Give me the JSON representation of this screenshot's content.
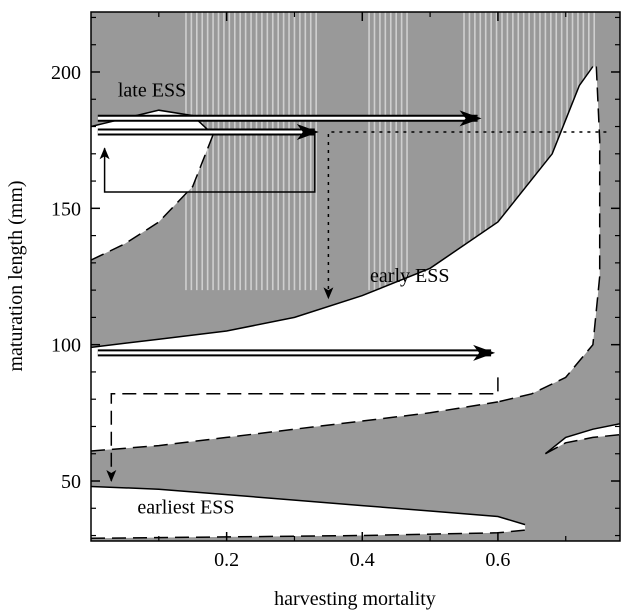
{
  "chart_data": {
    "type": "area",
    "title": "",
    "xlabel": "harvesting mortality",
    "ylabel": "maturation length (mm)",
    "xlim": [
      0,
      0.78
    ],
    "ylim": [
      28,
      222
    ],
    "x_ticks": [
      0.2,
      0.4,
      0.6
    ],
    "x_tick_labels": [
      "0.2",
      "0.4",
      "0.6"
    ],
    "y_ticks": [
      50,
      100,
      150,
      200
    ],
    "y_tick_labels": [
      "50",
      "100",
      "150",
      "200"
    ],
    "grid": false,
    "colors": {
      "background": "#999999",
      "ess_region": "#ffffff",
      "stripes": "#d9d9d9",
      "lines": "#000000"
    },
    "region_labels": [
      {
        "text": "late ESS",
        "x": 0.09,
        "y": 191
      },
      {
        "text": "early ESS",
        "x": 0.47,
        "y": 123
      },
      {
        "text": "earliest ESS",
        "x": 0.14,
        "y": 38
      }
    ],
    "boundaries": [
      {
        "name": "late-ess-upper",
        "style": "solid",
        "x": [
          0,
          0.05,
          0.1,
          0.15,
          0.18
        ],
        "y": [
          180,
          183,
          186,
          184,
          177
        ]
      },
      {
        "name": "late-ess-lower",
        "style": "dashed",
        "x": [
          0,
          0.05,
          0.1,
          0.15,
          0.18
        ],
        "y": [
          131,
          137,
          145,
          158,
          177
        ]
      },
      {
        "name": "early-ess-upper",
        "style": "solid",
        "x": [
          0,
          0.1,
          0.2,
          0.3,
          0.4,
          0.5,
          0.6,
          0.68,
          0.72,
          0.74
        ],
        "y": [
          99,
          102,
          105,
          110,
          118,
          128,
          145,
          170,
          195,
          202
        ]
      },
      {
        "name": "early-ess-right",
        "style": "dashed",
        "x": [
          0.745,
          0.75,
          0.75,
          0.74,
          0.7,
          0.65,
          0.6
        ],
        "y": [
          202,
          175,
          125,
          100,
          88,
          82,
          79
        ]
      },
      {
        "name": "early-ess-lower",
        "style": "dashed",
        "x": [
          0,
          0.1,
          0.2,
          0.3,
          0.4,
          0.5,
          0.6
        ],
        "y": [
          61,
          63,
          66,
          69,
          72,
          75,
          79
        ]
      },
      {
        "name": "earliest-ess-upper",
        "style": "solid",
        "x": [
          0,
          0.1,
          0.2,
          0.3,
          0.4,
          0.5,
          0.6,
          0.64
        ],
        "y": [
          48,
          47,
          45,
          43,
          41,
          39,
          37,
          34
        ]
      },
      {
        "name": "earliest-ess-lower",
        "style": "dashed",
        "x": [
          0,
          0.2,
          0.4,
          0.6,
          0.64
        ],
        "y": [
          29,
          29.5,
          30,
          31,
          32
        ]
      },
      {
        "name": "small-region-upper",
        "style": "solid",
        "x": [
          0.67,
          0.7,
          0.74,
          0.78
        ],
        "y": [
          60,
          66,
          69,
          71
        ]
      },
      {
        "name": "small-region-lower",
        "style": "dashed",
        "x": [
          0.67,
          0.7,
          0.74,
          0.78
        ],
        "y": [
          60,
          64,
          66,
          67
        ]
      }
    ],
    "arrows": [
      {
        "name": "late-to-early-arrow",
        "style": "double",
        "x": [
          0.01,
          0.57
        ],
        "y": [
          183,
          183
        ]
      },
      {
        "name": "late-ess-arrow",
        "style": "double",
        "x": [
          0.01,
          0.33
        ],
        "y": [
          178,
          178
        ]
      },
      {
        "name": "early-ess-arrow",
        "style": "double",
        "x": [
          0.01,
          0.59
        ],
        "y": [
          97,
          97
        ]
      },
      {
        "name": "dotted-arrow",
        "style": "dotted",
        "x": [
          0.76,
          0.35,
          0.35
        ],
        "y": [
          178,
          178,
          117
        ]
      },
      {
        "name": "return-arrow-upper",
        "style": "solid",
        "x": [
          0.33,
          0.33,
          0.02,
          0.02
        ],
        "y": [
          178,
          156,
          156,
          172
        ]
      },
      {
        "name": "return-arrow-lower",
        "style": "dashed",
        "x": [
          0.6,
          0.6,
          0.03,
          0.03
        ],
        "y": [
          88,
          82,
          82,
          50
        ]
      }
    ]
  }
}
